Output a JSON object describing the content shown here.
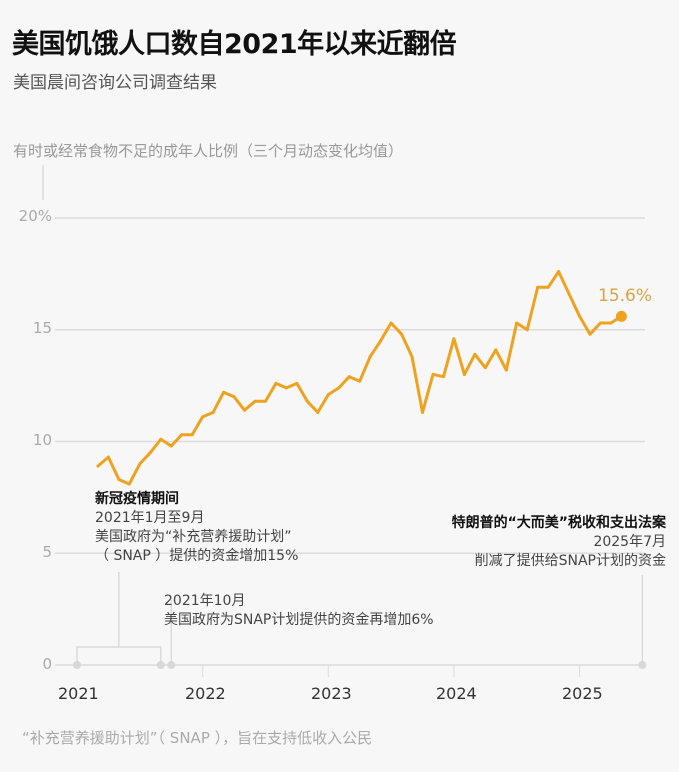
{
  "title": "美国饥饿人口数自2021年以来近翻倍",
  "subtitle": "美国晨间咨询公司调查结果",
  "note": "“补充营养援助计划”（ SNAP ），旨在支持低收入公民",
  "chart_data": {
    "type": "line",
    "ylabel": "有时或经常食物不足的成年人比例（三个月动态变化均值）",
    "ylim": [
      0,
      20
    ],
    "y_ticks": [
      "0",
      "5",
      "10",
      "15",
      "20%"
    ],
    "x_ticks": [
      "2021",
      "2022",
      "2023",
      "2024",
      "2025"
    ],
    "xlim": [
      "2021-01",
      "2025-07"
    ],
    "grid": true,
    "line_color": "#eea21f",
    "end_label": "15.6%",
    "x": [
      "2021-03",
      "2021-04",
      "2021-05",
      "2021-06",
      "2021-07",
      "2021-08",
      "2021-09",
      "2021-10",
      "2021-11",
      "2021-12",
      "2022-01",
      "2022-02",
      "2022-03",
      "2022-04",
      "2022-05",
      "2022-06",
      "2022-07",
      "2022-08",
      "2022-09",
      "2022-10",
      "2022-11",
      "2022-12",
      "2023-01",
      "2023-02",
      "2023-03",
      "2023-04",
      "2023-05",
      "2023-06",
      "2023-07",
      "2023-08",
      "2023-09",
      "2023-10",
      "2023-11",
      "2023-12",
      "2024-01",
      "2024-02",
      "2024-03",
      "2024-04",
      "2024-05",
      "2024-06",
      "2024-07",
      "2024-08",
      "2024-09",
      "2024-10",
      "2024-11",
      "2024-12",
      "2025-01",
      "2025-02",
      "2025-03",
      "2025-04",
      "2025-05"
    ],
    "values": [
      8.9,
      9.3,
      8.3,
      8.1,
      9.0,
      9.5,
      10.1,
      9.8,
      10.3,
      10.3,
      11.1,
      11.3,
      12.2,
      12.0,
      11.4,
      11.8,
      11.8,
      12.6,
      12.4,
      12.6,
      11.8,
      11.3,
      12.1,
      12.4,
      12.9,
      12.7,
      13.8,
      14.5,
      15.3,
      14.8,
      13.8,
      11.3,
      13.0,
      12.9,
      14.6,
      13.0,
      13.9,
      13.3,
      14.1,
      13.2,
      15.3,
      15.0,
      16.9,
      16.9,
      17.6,
      16.6,
      15.6,
      14.8,
      15.3,
      15.3,
      15.6
    ],
    "annotations": [
      {
        "title": "新冠疫情期间",
        "date": "2021年1月至9月",
        "lines": [
          "美国政府为“补充营养援助计划”",
          "（ SNAP ）提供的资金增加15%"
        ],
        "start": "2021-01",
        "end": "2021-09"
      },
      {
        "date": "2021年10月",
        "lines": [
          "美国政府为SNAP计划提供的资金再增加6%"
        ],
        "at": "2021-10"
      },
      {
        "title": "特朗普的“大而美”税收和支出法案",
        "date": "2025年7月",
        "lines": [
          "削减了提供给SNAP计划的资金"
        ],
        "at": "2025-07"
      }
    ]
  }
}
